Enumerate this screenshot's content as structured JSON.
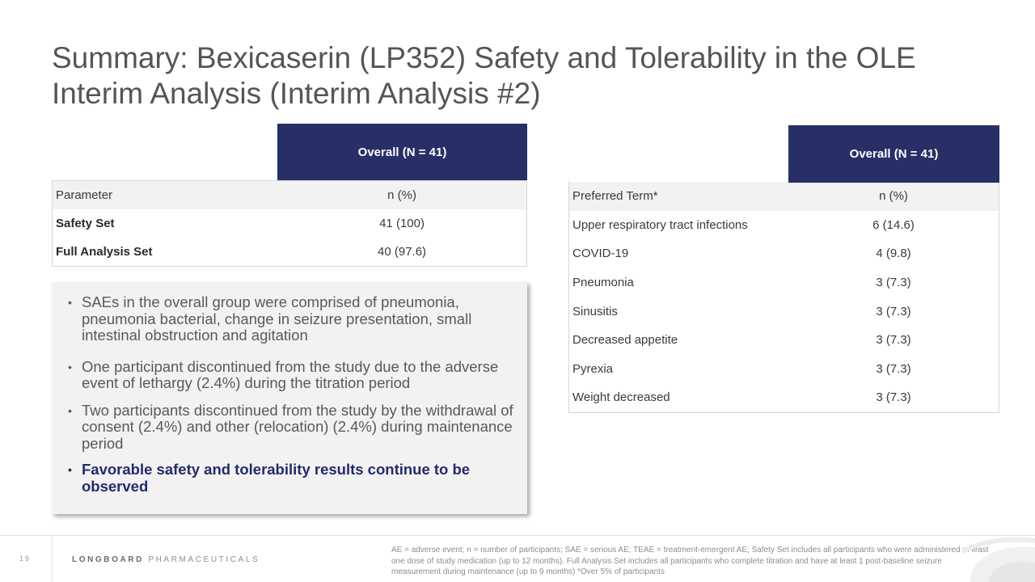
{
  "title": {
    "line1": "Summary: Bexicaserin (LP352) Safety and Tolerability in the OLE",
    "line2": "Interim Analysis (Interim Analysis #2)"
  },
  "left_table": {
    "header": "Overall  (N = 41)",
    "columns": [
      "Parameter",
      "n (%)"
    ],
    "rows": [
      {
        "label": "Safety Set",
        "value": "41 (100)"
      },
      {
        "label": "Full Analysis Set",
        "value": "40 (97.6)"
      }
    ]
  },
  "right_table": {
    "header": "Overall (N = 41)",
    "columns": [
      "Preferred Term*",
      "n (%)"
    ],
    "rows": [
      {
        "label": "Upper respiratory tract infections",
        "value": "6 (14.6)"
      },
      {
        "label": "COVID-19",
        "value": "4 (9.8)"
      },
      {
        "label": "Pneumonia",
        "value": "3 (7.3)"
      },
      {
        "label": "Sinusitis",
        "value": "3 (7.3)"
      },
      {
        "label": "Decreased appetite",
        "value": "3 (7.3)"
      },
      {
        "label": "Pyrexia",
        "value": "3 (7.3)"
      },
      {
        "label": "Weight decreased",
        "value": "3 (7.3)"
      }
    ]
  },
  "bullets": [
    "SAEs in the overall group were comprised of pneumonia, pneumonia bacterial, change in seizure presentation, small intestinal obstruction and agitation",
    "One participant discontinued from the study due to the adverse event of lethargy (2.4%) during the titration period",
    "Two participants discontinued from the study by the withdrawal of consent (2.4%) and other (relocation) (2.4%) during maintenance period",
    "Favorable safety and tolerability results continue to be observed"
  ],
  "footer": {
    "page_number": "19",
    "logo_bold": "LONGBOARD",
    "logo_light": "PHARMACEUTICALS",
    "footnote": "AE = adverse event; n = number of participants; SAE = serious AE; TEAE = treatment-emergent AE; Safety Set includes all participants who were administered at least one dose of study medication (up to 12 months).  Full Analysis Set includes all participants who complete titration and have at least 1 post-baseline seizure measurement during maintenance (up to 9 months) *Over 5% of participants"
  },
  "colors": {
    "header_navy": "#282f66",
    "emphasis_navy": "#232b6a",
    "row_shade": "#f2f2f2"
  }
}
